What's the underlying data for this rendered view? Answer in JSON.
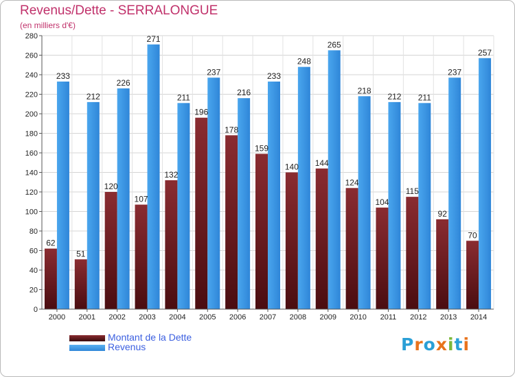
{
  "header": {
    "title": "Revenus/Dette - SERRALONGUE",
    "subtitle": "(en milliers d'€)"
  },
  "legend": {
    "items": [
      {
        "label": "Montant de la Dette",
        "color": "#6b1a1f"
      },
      {
        "label": "Revenus",
        "color": "#3b98e6"
      }
    ]
  },
  "logo": {
    "letters": [
      "P",
      "r",
      "o",
      "x",
      "i",
      "t",
      "i"
    ],
    "colors": [
      "#2a9fd6",
      "#e8731c",
      "#2a9fd6",
      "#e8731c",
      "#7bb83a",
      "#2a9fd6",
      "#e8731c"
    ]
  },
  "chart_data": {
    "type": "bar",
    "categories": [
      "2000",
      "2001",
      "2002",
      "2003",
      "2004",
      "2005",
      "2006",
      "2007",
      "2008",
      "2009",
      "2010",
      "2011",
      "2012",
      "2013",
      "2014"
    ],
    "series": [
      {
        "name": "Montant de la Dette",
        "color": "#7a2328",
        "values": [
          62,
          51,
          120,
          107,
          132,
          196,
          178,
          159,
          140,
          144,
          124,
          104,
          115,
          92,
          70
        ]
      },
      {
        "name": "Revenus",
        "color": "#3b98e6",
        "values": [
          233,
          212,
          226,
          271,
          211,
          237,
          216,
          233,
          248,
          265,
          218,
          212,
          211,
          237,
          257
        ]
      }
    ],
    "ylim": [
      0,
      280
    ],
    "yticks": [
      0,
      20,
      40,
      60,
      80,
      100,
      120,
      140,
      160,
      180,
      200,
      220,
      240,
      260,
      280
    ],
    "grid": true,
    "legend_position": "bottom-left"
  }
}
